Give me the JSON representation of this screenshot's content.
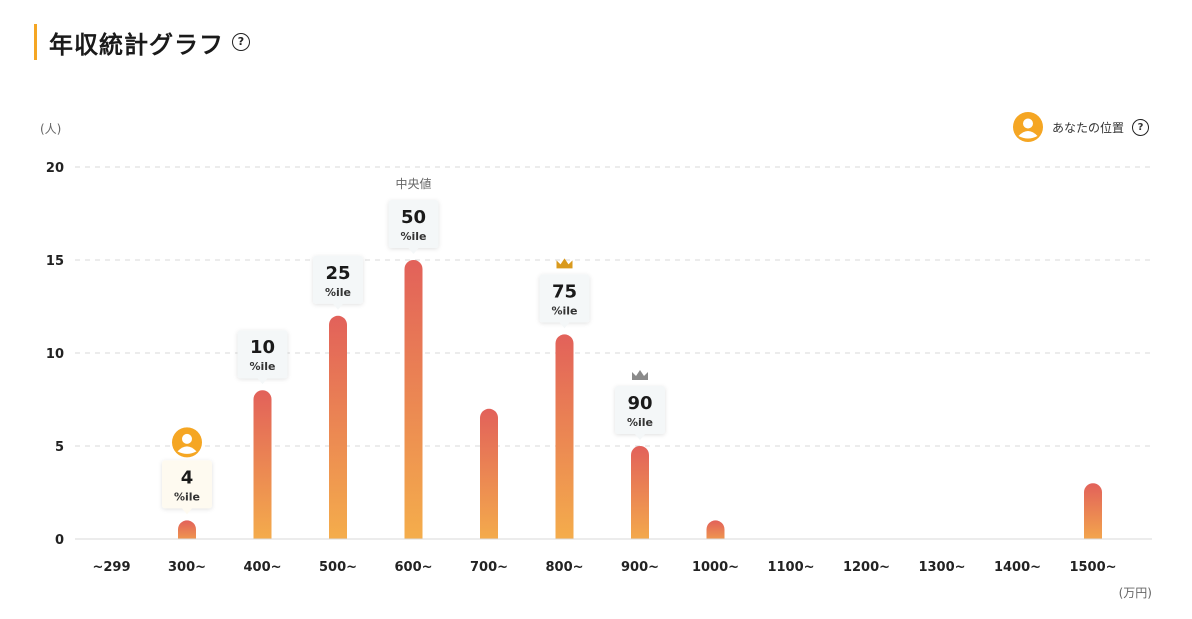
{
  "header": {
    "title": "年収統計グラフ",
    "help_glyph": "?"
  },
  "legend": {
    "label": "あなたの位置",
    "icon": "user-avatar-icon",
    "help_glyph": "?"
  },
  "colors": {
    "accent": "#f5a623",
    "bar_top": "#e2615a",
    "bar_bottom": "#f5b04b",
    "avatar": "#f5a623",
    "crown_gold": "#d99a1e",
    "crown_gray": "#8a8a8a",
    "grid": "#d8d8d8"
  },
  "chart_data": {
    "type": "bar",
    "ylabel": "(人)",
    "xlabel": "(万円)",
    "ylim": [
      0,
      20
    ],
    "yticks": [
      0,
      5,
      10,
      15,
      20
    ],
    "grid": true,
    "categories": [
      "~299",
      "300~",
      "400~",
      "500~",
      "600~",
      "700~",
      "800~",
      "900~",
      "1000~",
      "1100~",
      "1200~",
      "1300~",
      "1400~",
      "1500~"
    ],
    "values": [
      0,
      1,
      8,
      12,
      15,
      7,
      11,
      5,
      1,
      0,
      0,
      0,
      0,
      3
    ],
    "percentile_labels": [
      {
        "category": "300~",
        "value": "4",
        "unit": "%ile",
        "you": true
      },
      {
        "category": "400~",
        "value": "10",
        "unit": "%ile"
      },
      {
        "category": "500~",
        "value": "25",
        "unit": "%ile"
      },
      {
        "category": "600~",
        "value": "50",
        "unit": "%ile",
        "note": "中央値"
      },
      {
        "category": "800~",
        "value": "75",
        "unit": "%ile",
        "crown": "gold"
      },
      {
        "category": "900~",
        "value": "90",
        "unit": "%ile",
        "crown": "gray"
      }
    ]
  }
}
